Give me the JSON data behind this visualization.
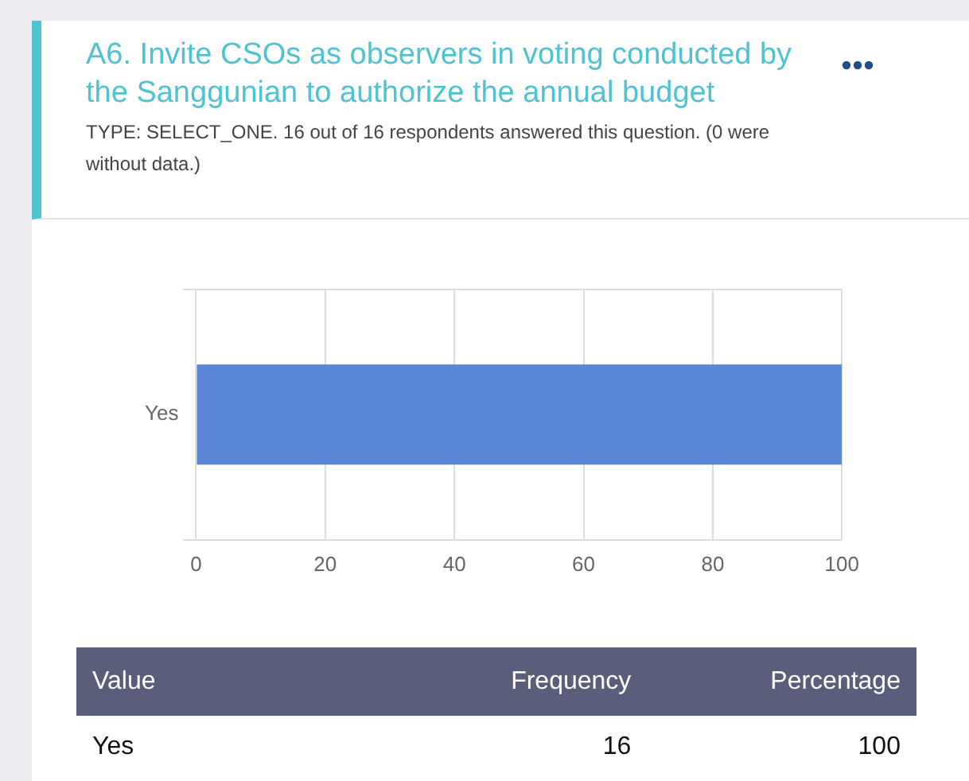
{
  "chart_data": {
    "type": "bar",
    "orientation": "horizontal",
    "title": "A6. Invite CSOs as observers in voting conducted by the Sanggunian to authorize the annual budget",
    "subtitle": "TYPE: SELECT_ONE. 16 out of 16 respondents answered this question. (0 were without data.)",
    "categories": [
      "Yes"
    ],
    "values": [
      100
    ],
    "color": "#5b88d6",
    "xlim": [
      0,
      100
    ],
    "xticks": [
      0,
      20,
      40,
      60,
      80,
      100
    ],
    "grid": true,
    "legend": false,
    "annotations": [
      "Value",
      "Frequency",
      "Percentage",
      "16",
      "100"
    ]
  }
}
